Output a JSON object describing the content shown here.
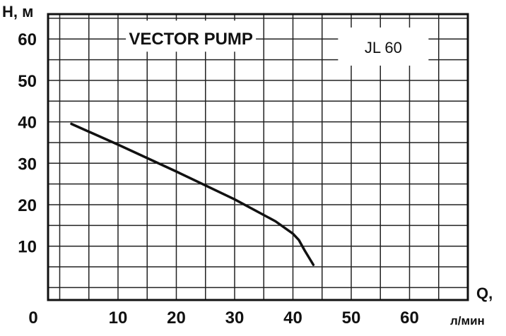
{
  "chart_data": {
    "type": "line",
    "title": "VECTOR PUMP",
    "model": "JL 60",
    "ylabel": "H, м",
    "xlabel": "Q,",
    "xunit": "л/мин",
    "origin_label": "0",
    "xlim": [
      -2,
      70
    ],
    "ylim": [
      -3,
      66
    ],
    "x_ticks": [
      "10",
      "20",
      "30",
      "40",
      "50",
      "60"
    ],
    "x_tick_values": [
      10,
      20,
      30,
      40,
      50,
      60
    ],
    "y_ticks": [
      "10",
      "20",
      "30",
      "40",
      "50",
      "60"
    ],
    "y_tick_values": [
      10,
      20,
      30,
      40,
      50,
      60
    ],
    "grid": true,
    "series": [
      {
        "x": [
          2,
          10,
          20,
          30,
          37,
          40,
          41,
          42,
          43.5
        ],
        "y": [
          39.5,
          34.5,
          28,
          21.3,
          16,
          13,
          11.5,
          9,
          5.5
        ]
      }
    ]
  }
}
